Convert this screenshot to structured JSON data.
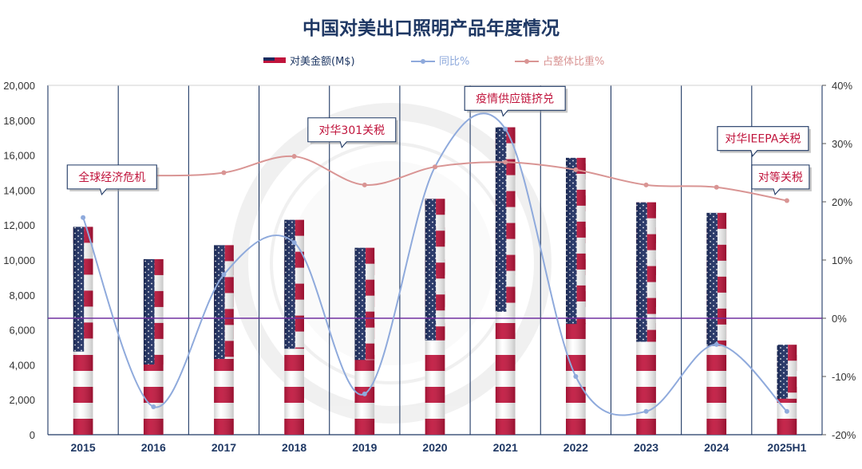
{
  "chart_data": {
    "type": "bar",
    "title": "中国对美出口照明产品年度情况",
    "categories": [
      "2015",
      "2016",
      "2017",
      "2018",
      "2019",
      "2020",
      "2021",
      "2022",
      "2023",
      "2024",
      "2025H1"
    ],
    "series": [
      {
        "name": "对美金额(M$)",
        "type": "bar",
        "axis": "left",
        "values": [
          11900,
          10050,
          10850,
          12300,
          10700,
          13500,
          17600,
          15850,
          13300,
          12700,
          5150
        ]
      },
      {
        "name": "同比%",
        "type": "line",
        "axis": "right",
        "smooth": true,
        "values": [
          17.3,
          -15.2,
          7.5,
          13.0,
          -13.0,
          26.0,
          32.5,
          -10.0,
          -16.0,
          -4.5,
          -16.0
        ]
      },
      {
        "name": "占整体比重%",
        "type": "line",
        "axis": "right",
        "smooth": true,
        "values": [
          24.9,
          24.5,
          25.0,
          27.8,
          22.9,
          26.0,
          26.8,
          25.5,
          22.9,
          22.5,
          20.2
        ]
      }
    ],
    "left_axis": {
      "min": 0,
      "max": 20000,
      "step": 2000,
      "tick_labels": [
        "0",
        "2,000",
        "4,000",
        "6,000",
        "8,000",
        "10,000",
        "12,000",
        "14,000",
        "16,000",
        "18,000",
        "20,000"
      ]
    },
    "right_axis": {
      "min": -20,
      "max": 40,
      "step": 10,
      "tick_labels": [
        "-20%",
        "-10%",
        "0%",
        "10%",
        "20%",
        "30%",
        "40%"
      ]
    },
    "zero_reference_line": 0,
    "grid": "vertical",
    "legend_position": "top-center",
    "annotations": [
      {
        "text": "全球经济危机",
        "category": "2016",
        "value": 14800
      },
      {
        "text": "对华301关税",
        "category": "2019",
        "value": 17500
      },
      {
        "text": "疫情供应链挤兑",
        "category": "2021",
        "value": 19300
      },
      {
        "text": "对华IEEPA关税",
        "category": "2025H1",
        "value": 17000
      },
      {
        "text": "对等关税",
        "category": "2025H1",
        "value": 14800
      }
    ],
    "colors": {
      "title": "#1f3864",
      "bar_red": "#c0143c",
      "bar_navy": "#1a2b5f",
      "yoy_line": "#8faadc",
      "share_line": "#d99594",
      "zero_line": "#7030a0",
      "grid": "#1f3864"
    }
  }
}
